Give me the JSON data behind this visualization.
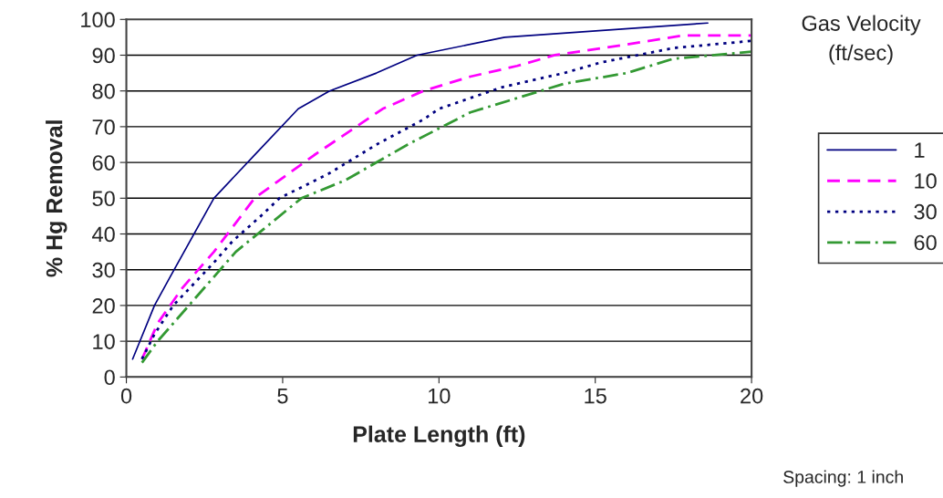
{
  "chart_data": {
    "type": "line",
    "xlabel": "Plate Length (ft)",
    "ylabel": "% Hg Removal",
    "legend_title": "Gas Velocity\n(ft/sec)",
    "xlim": [
      0,
      20
    ],
    "xticks": [
      0,
      5,
      10,
      15,
      20
    ],
    "ylim": [
      0,
      100
    ],
    "yticks": [
      0,
      10,
      20,
      30,
      40,
      50,
      60,
      70,
      80,
      90,
      100
    ],
    "grid": "y",
    "legend": "right",
    "series": [
      {
        "name": "1",
        "color": "#000080",
        "line_style": "solid",
        "x": [
          0.2,
          0.9,
          1.4,
          2.8,
          4.2,
          5.5,
          6.5,
          8,
          9.3,
          12.1,
          18.6
        ],
        "values": [
          5,
          20,
          28,
          50,
          63,
          75,
          80,
          85,
          90,
          95,
          99
        ]
      },
      {
        "name": "10",
        "color": "#ff00ff",
        "line_style": "dashed",
        "x": [
          0.5,
          1,
          1.8,
          2.8,
          4.1,
          6,
          8.2,
          9.5,
          11,
          12.5,
          13.7,
          16,
          17.8,
          20
        ],
        "values": [
          5,
          15,
          25,
          35,
          50,
          62,
          75,
          80,
          84,
          87,
          90,
          93,
          95.5,
          95.5
        ]
      },
      {
        "name": "30",
        "color": "#000080",
        "line_style": "dotted",
        "x": [
          0.5,
          0.9,
          1.5,
          2.8,
          3.4,
          4.3,
          4.9,
          6.5,
          8,
          9.5,
          10,
          12,
          14,
          15.2,
          17.5,
          20
        ],
        "values": [
          5,
          12,
          20,
          32,
          38,
          45,
          50,
          57,
          65,
          72,
          75,
          81,
          85,
          88,
          92,
          94
        ]
      },
      {
        "name": "60",
        "color": "#339933",
        "line_style": "dashdot",
        "x": [
          0.5,
          1,
          1.5,
          2,
          2.8,
          3.5,
          5.6,
          7,
          9,
          11,
          12.5,
          14,
          16,
          17.5,
          20
        ],
        "values": [
          4,
          10,
          15,
          20,
          28,
          35,
          50,
          55,
          65,
          74,
          78,
          82,
          85,
          89,
          91
        ]
      }
    ],
    "annotations": [
      "Spacing: 1 inch"
    ]
  }
}
